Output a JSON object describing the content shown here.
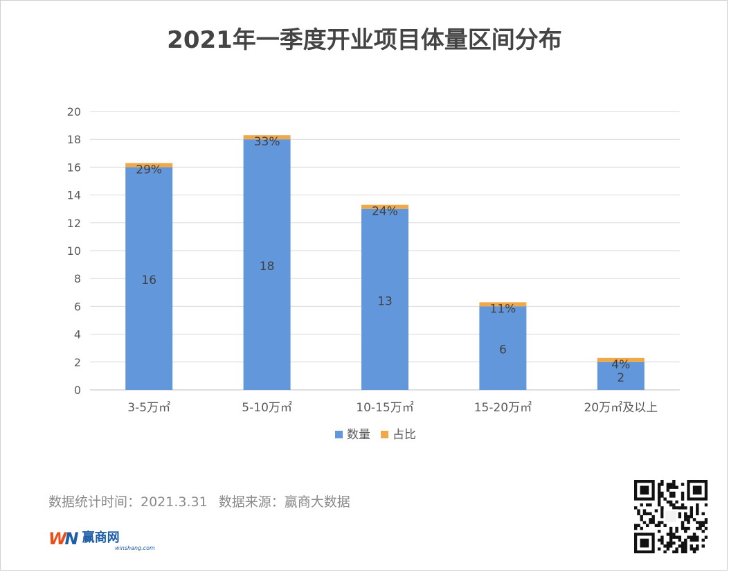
{
  "chart_data": {
    "type": "bar",
    "stacked": true,
    "title": "2021年一季度开业项目体量区间分布",
    "categories": [
      "3-5万㎡",
      "5-10万㎡",
      "10-15万㎡",
      "15-20万㎡",
      "20万㎡及以上"
    ],
    "series": [
      {
        "name": "数量",
        "color": "#6397dc",
        "values": [
          16,
          18,
          13,
          6,
          2
        ]
      },
      {
        "name": "占比",
        "color": "#f0a94a",
        "values": [
          0.29,
          0.33,
          0.24,
          0.11,
          0.04
        ],
        "labels": [
          "29%",
          "33%",
          "24%",
          "11%",
          "4%"
        ]
      }
    ],
    "ylim": [
      0,
      20
    ],
    "yticks": [
      0,
      2,
      4,
      6,
      8,
      10,
      12,
      14,
      16,
      18,
      20
    ],
    "grid": true,
    "legend": "bottom-center"
  },
  "footer": {
    "stat_time": "数据统计时间：2021.3.31",
    "source": "数据来源：赢商大数据"
  },
  "brand": {
    "mark_w": "W",
    "mark_n": "N",
    "name": "赢商网",
    "url": "winshang.com"
  },
  "icons": {
    "qr": "qr-code-icon",
    "logo": "winshang-logo-icon"
  }
}
